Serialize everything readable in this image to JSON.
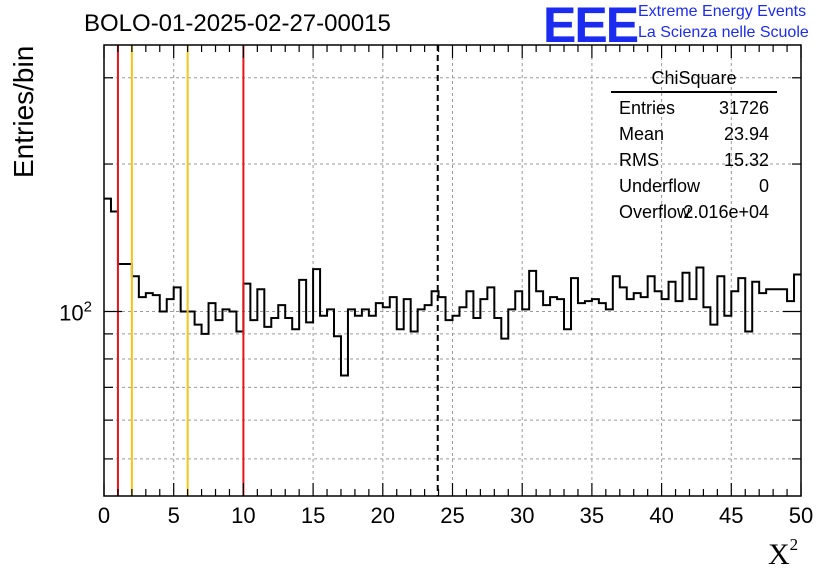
{
  "chart_data": {
    "type": "histogram",
    "title": "BOLO-01-2025-02-27-00015",
    "ylabel": "Entries/bin",
    "xlabel": "X",
    "xlabel_superscript": "2",
    "y_scale": "log",
    "xlim": [
      0,
      50
    ],
    "ylim": [
      42,
      350
    ],
    "x_ticks": [
      0,
      5,
      10,
      15,
      20,
      25,
      30,
      35,
      40,
      45,
      50
    ],
    "x_tick_labels": [
      "0",
      "5",
      "10",
      "15",
      "20",
      "25",
      "30",
      "35",
      "40",
      "45",
      "50"
    ],
    "y_tick_label": {
      "base": "10",
      "exp": "2",
      "value": 100
    },
    "bin_width": 0.5,
    "bin_start": 0,
    "values": [
      170,
      160,
      125,
      125,
      118,
      107,
      109,
      108,
      100,
      106,
      112,
      100,
      100,
      94,
      90,
      104,
      96,
      101,
      100,
      91,
      114,
      96,
      111,
      93,
      97,
      103,
      97,
      92,
      116,
      95,
      122,
      98,
      101,
      89,
      74,
      101,
      98,
      101,
      98,
      104,
      102,
      107,
      92,
      106,
      91,
      101,
      103,
      110,
      107,
      96,
      98,
      102,
      110,
      97,
      106,
      112,
      97,
      88,
      101,
      110,
      101,
      121,
      110,
      103,
      107,
      106,
      92,
      117,
      104,
      105,
      106,
      104,
      101,
      118,
      112,
      106,
      109,
      107,
      118,
      110,
      106,
      115,
      105,
      120,
      106,
      123,
      102,
      94,
      118,
      98,
      110,
      117,
      91,
      115,
      109,
      111,
      111,
      111,
      105,
      119
    ],
    "vertical_lines": [
      {
        "x": 1,
        "color": "#e8141a",
        "style": "solid"
      },
      {
        "x": 2,
        "color": "#f5c518",
        "style": "solid"
      },
      {
        "x": 6,
        "color": "#f5c518",
        "style": "solid"
      },
      {
        "x": 10,
        "color": "#e8141a",
        "style": "solid"
      },
      {
        "x": 23.94,
        "color": "#000000",
        "style": "dashed"
      }
    ],
    "grid": true
  },
  "stats": {
    "name": "ChiSquare",
    "rows": [
      {
        "label": "Entries",
        "value": "31726"
      },
      {
        "label": "Mean",
        "value": "23.94"
      },
      {
        "label": "RMS",
        "value": "15.32"
      },
      {
        "label": "Underflow",
        "value": "0"
      },
      {
        "label": "Overflow",
        "value": "2.016e+04"
      }
    ]
  },
  "branding": {
    "logo": "EEE",
    "line1": "Extreme Energy Events",
    "line2": "La Scienza nelle Scuole"
  },
  "colors": {
    "brand": "#1b2cf0",
    "axis": "#000000",
    "grid": "#9a9a9a"
  }
}
